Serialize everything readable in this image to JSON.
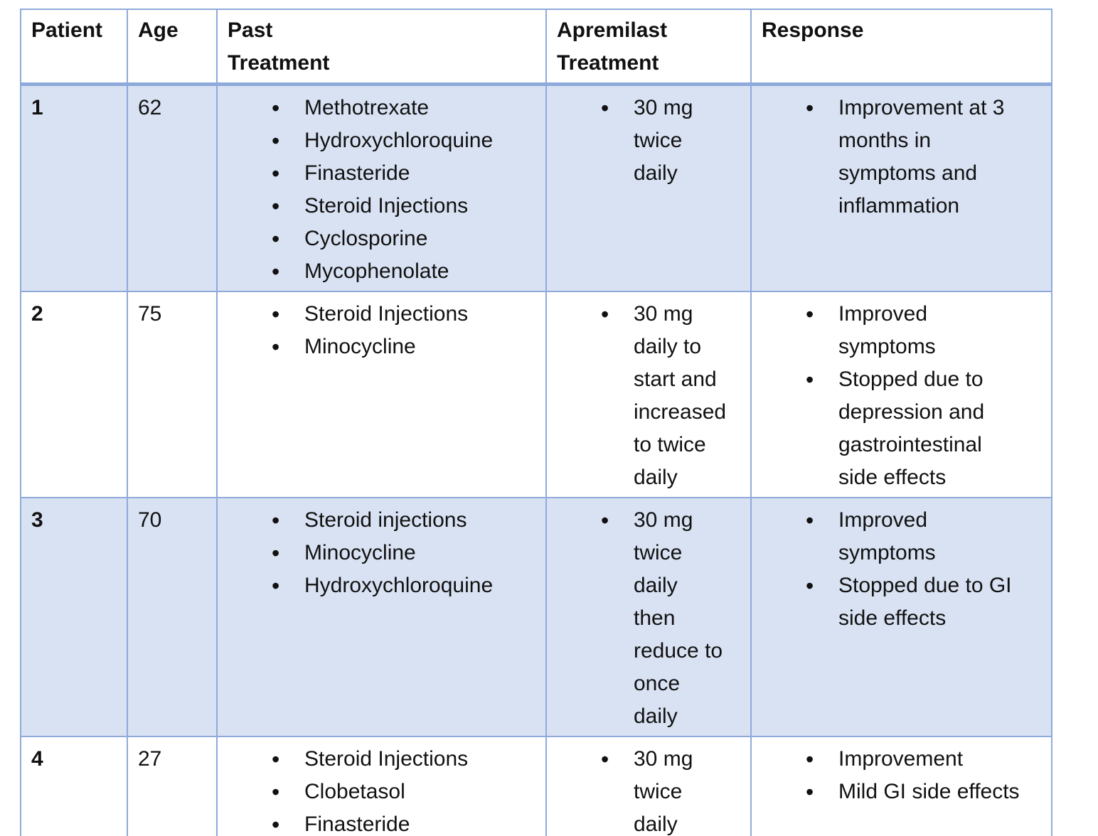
{
  "table": {
    "columns": [
      "Patient",
      "Age",
      "Past\nTreatment",
      "Apremilast\nTreatment",
      "Response"
    ],
    "rows": [
      {
        "patient": "1",
        "age": "62",
        "past_treatment": [
          "Methotrexate",
          "Hydroxychloroquine",
          "Finasteride",
          "Steroid Injections",
          "Cyclosporine",
          "Mycophenolate"
        ],
        "apremilast_treatment": [
          "30 mg twice daily"
        ],
        "response": [
          "Improvement at 3 months in symptoms and inflammation"
        ]
      },
      {
        "patient": "2",
        "age": "75",
        "past_treatment": [
          "Steroid Injections",
          "Minocycline"
        ],
        "apremilast_treatment": [
          "30 mg daily to start and increased to twice daily"
        ],
        "response": [
          "Improved symptoms",
          "Stopped due to depression and gastrointestinal side effects"
        ]
      },
      {
        "patient": "3",
        "age": "70",
        "past_treatment": [
          "Steroid injections",
          "Minocycline",
          "Hydroxychloroquine"
        ],
        "apremilast_treatment": [
          "30 mg twice daily then reduce to once daily"
        ],
        "response": [
          "Improved symptoms",
          "Stopped due to GI side effects"
        ]
      },
      {
        "patient": "4",
        "age": "27",
        "past_treatment": [
          "Steroid Injections",
          "Clobetasol",
          "Finasteride"
        ],
        "apremilast_treatment": [
          "30 mg twice daily"
        ],
        "response": [
          "Improvement",
          "Mild GI side effects"
        ]
      }
    ]
  },
  "colors": {
    "border": "#8EAADB",
    "band_fill": "#D9E2F3",
    "text": "#111111",
    "background": "#FFFFFF"
  }
}
